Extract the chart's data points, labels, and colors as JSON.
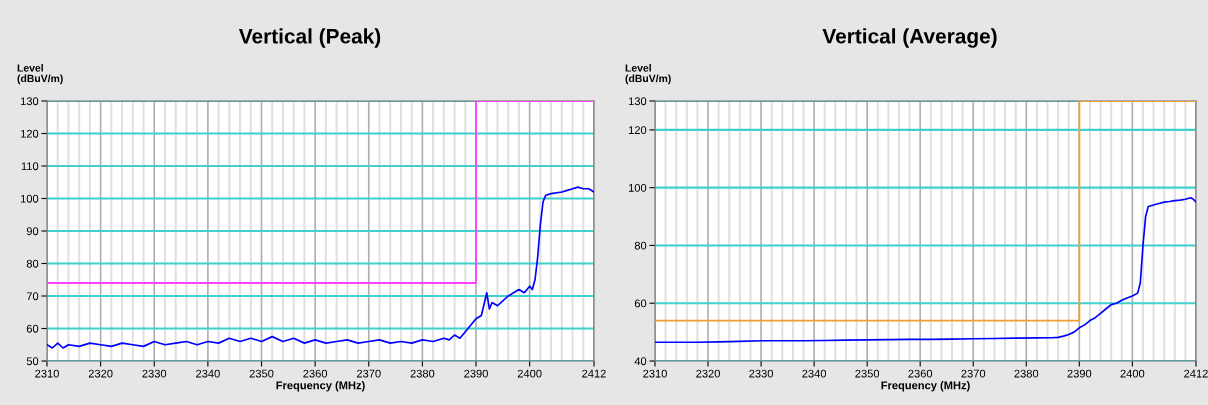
{
  "chart_data": [
    {
      "type": "line",
      "title": "Vertical (Peak)",
      "xlabel": "Frequency (MHz)",
      "ylabel": "Level\n(dBuV/m)",
      "xlim": [
        2310,
        2412
      ],
      "xticks": [
        2310,
        2320,
        2330,
        2340,
        2350,
        2360,
        2370,
        2380,
        2390,
        2400,
        2412
      ],
      "ylim": [
        50,
        130
      ],
      "yticks": [
        50,
        60,
        70,
        80,
        90,
        100,
        110,
        120,
        130
      ],
      "grid": true,
      "series": [
        {
          "color": "#ff40ff",
          "x": [
            2310,
            2390,
            2390,
            2412
          ],
          "values": [
            74,
            74,
            130,
            130
          ]
        },
        {
          "color": "#0000ff",
          "x": [
            2310,
            2311,
            2312,
            2313,
            2314,
            2316,
            2318,
            2320,
            2322,
            2324,
            2326,
            2328,
            2330,
            2332,
            2334,
            2336,
            2338,
            2340,
            2342,
            2344,
            2346,
            2348,
            2350,
            2352,
            2354,
            2356,
            2358,
            2360,
            2362,
            2364,
            2366,
            2368,
            2370,
            2372,
            2374,
            2376,
            2378,
            2380,
            2382,
            2384,
            2385,
            2386,
            2387,
            2388,
            2389,
            2390,
            2391,
            2392,
            2392.5,
            2393,
            2394,
            2395,
            2396,
            2397,
            2398,
            2399,
            2400,
            2400.5,
            2401,
            2401.5,
            2402,
            2402.5,
            2403,
            2404,
            2406,
            2407,
            2408,
            2409,
            2410,
            2411,
            2412
          ],
          "values": [
            55,
            54,
            55.5,
            54,
            55,
            54.5,
            55.5,
            55,
            54.5,
            55.5,
            55,
            54.5,
            56,
            55,
            55.5,
            56,
            55,
            56,
            55.5,
            57,
            56,
            57,
            56,
            57.5,
            56,
            57,
            55.5,
            56.5,
            55.5,
            56,
            56.5,
            55.5,
            56,
            56.5,
            55.5,
            56,
            55.5,
            56.5,
            56,
            57,
            56.5,
            58,
            57,
            59,
            61,
            63,
            64,
            71,
            66,
            68,
            67,
            68.5,
            70,
            71,
            72,
            71,
            73,
            72,
            75,
            82,
            92,
            99,
            101,
            101.5,
            102,
            102.5,
            103,
            103.5,
            103,
            103,
            102
          ]
        }
      ]
    },
    {
      "type": "line",
      "title": "Vertical (Average)",
      "xlabel": "Frequency (MHz)",
      "ylabel": "Level\n(dBuV/m)",
      "xlim": [
        2310,
        2412
      ],
      "xticks": [
        2310,
        2320,
        2330,
        2340,
        2350,
        2360,
        2370,
        2380,
        2390,
        2400,
        2412
      ],
      "ylim": [
        40,
        130
      ],
      "yticks": [
        40,
        60,
        80,
        100,
        120,
        130
      ],
      "grid": true,
      "series": [
        {
          "color": "#f0a030",
          "x": [
            2310,
            2390,
            2390,
            2412
          ],
          "values": [
            54,
            54,
            130,
            130
          ]
        },
        {
          "color": "#0000ff",
          "x": [
            2310,
            2314,
            2318,
            2322,
            2326,
            2330,
            2334,
            2338,
            2342,
            2346,
            2350,
            2354,
            2358,
            2362,
            2366,
            2370,
            2374,
            2378,
            2382,
            2385,
            2386,
            2387,
            2388,
            2389,
            2390,
            2391,
            2392,
            2393,
            2394,
            2395,
            2396,
            2397,
            2398,
            2399,
            2400,
            2401,
            2401.5,
            2402,
            2402.5,
            2403,
            2404,
            2405,
            2406,
            2407,
            2408,
            2409,
            2410,
            2411,
            2411.5,
            2412
          ],
          "values": [
            46.5,
            46.5,
            46.5,
            46.6,
            46.8,
            47,
            47,
            47,
            47.1,
            47.2,
            47.3,
            47.4,
            47.5,
            47.5,
            47.6,
            47.7,
            47.8,
            47.9,
            48,
            48.1,
            48.2,
            48.6,
            49.2,
            50,
            51.5,
            52.5,
            54,
            55,
            56.5,
            58,
            59.5,
            60,
            61,
            61.8,
            62.5,
            63.5,
            67,
            80,
            90,
            93.5,
            94,
            94.5,
            95,
            95.2,
            95.5,
            95.7,
            96,
            96.5,
            96,
            95
          ]
        }
      ]
    }
  ]
}
